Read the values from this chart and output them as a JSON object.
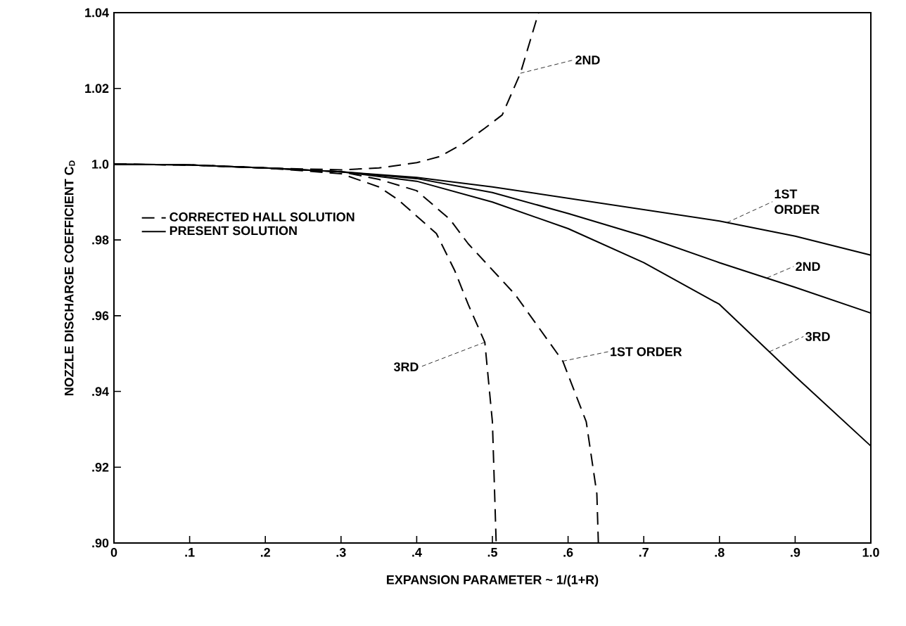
{
  "chart_data": {
    "type": "line",
    "xlabel": "EXPANSION PARAMETER ~ 1/(1+R)",
    "ylabel": "NOZZLE DISCHARGE COEFFICIENT C$_{D}$",
    "xlim": [
      0,
      1.0
    ],
    "ylim": [
      0.9,
      1.04
    ],
    "xticks": [
      0,
      {
        "value": 0.1,
        "label": ".1"
      },
      {
        "value": 0.2,
        "label": ".2"
      },
      {
        "value": 0.3,
        "label": ".3"
      },
      {
        "value": 0.4,
        "label": ".4"
      },
      {
        "value": 0.5,
        "label": ".5"
      },
      {
        "value": 0.6,
        "label": ".6"
      },
      {
        "value": 0.7,
        "label": ".7"
      },
      {
        "value": 0.8,
        "label": ".8"
      },
      {
        "value": 0.9,
        "label": ".9"
      },
      {
        "value": 1.0,
        "label": "1.0"
      }
    ],
    "yticks": [
      {
        "value": 0.9,
        "label": ".90"
      },
      {
        "value": 0.92,
        "label": ".92"
      },
      {
        "value": 0.94,
        "label": ".94"
      },
      {
        "value": 0.96,
        "label": ".96"
      },
      {
        "value": 0.98,
        "label": ".98"
      },
      {
        "value": 1.0,
        "label": "1.0"
      },
      {
        "value": 1.02,
        "label": "1.02"
      },
      {
        "value": 1.04,
        "label": "1.04"
      }
    ],
    "grid": false,
    "legend": "left",
    "marker": "none",
    "series": [
      {
        "name": "CORRECTED HALL SOLUTION",
        "color": "#000000",
        "line_style": "dashed",
        "x": [
          0,
          0.1,
          0.2,
          0.3,
          0.35,
          0.4,
          0.444,
          0.468,
          0.53,
          0.593,
          0.624,
          0.638,
          0.64
        ],
        "values": [
          1.0,
          0.9998,
          0.999,
          0.998,
          0.996,
          0.993,
          0.9854,
          0.979,
          0.9656,
          0.948,
          0.932,
          0.913,
          0.9
        ]
      },
      {
        "name": "PRESENT SOLUTION",
        "color": "#000000",
        "line_style": "solid",
        "x": [
          0,
          0.1,
          0.2,
          0.3,
          0.4,
          0.5,
          0.6,
          0.7,
          0.8,
          0.9,
          1.0
        ],
        "values": [
          1.0,
          0.9998,
          0.999,
          0.998,
          0.9965,
          0.994,
          0.991,
          0.988,
          0.985,
          0.981,
          0.976
        ]
      },
      {
        "color": "#000000",
        "line_style": "solid",
        "x": [
          0,
          0.1,
          0.2,
          0.3,
          0.4,
          0.5,
          0.6,
          0.7,
          0.8,
          0.9,
          1.0
        ],
        "values": [
          1.0,
          0.9998,
          0.999,
          0.998,
          0.9962,
          0.9925,
          0.987,
          0.981,
          0.974,
          0.9675,
          0.9607
        ]
      },
      {
        "color": "#000000",
        "line_style": "solid",
        "x": [
          0,
          0.1,
          0.2,
          0.3,
          0.4,
          0.5,
          0.6,
          0.7,
          0.8,
          0.9,
          1.0
        ],
        "values": [
          1.0,
          0.9998,
          0.999,
          0.998,
          0.9955,
          0.99,
          0.983,
          0.974,
          0.963,
          0.944,
          0.9256
        ]
      },
      {
        "color": "#000000",
        "line_style": "dashed",
        "x": [
          0,
          0.1,
          0.2,
          0.3,
          0.35,
          0.4,
          0.43,
          0.463,
          0.49,
          0.513,
          0.537,
          0.552,
          0.561
        ],
        "values": [
          1.0,
          0.9998,
          0.999,
          0.9985,
          0.999,
          1.0004,
          1.002,
          1.0056,
          1.0095,
          1.013,
          1.024,
          1.034,
          1.04
        ]
      },
      {
        "color": "#000000",
        "line_style": "dashed",
        "x": [
          0,
          0.1,
          0.2,
          0.3,
          0.35,
          0.375,
          0.426,
          0.45,
          0.468,
          0.49,
          0.5,
          0.505
        ],
        "values": [
          1.0,
          0.9998,
          0.999,
          0.9975,
          0.994,
          0.9907,
          0.9817,
          0.972,
          0.963,
          0.953,
          0.932,
          0.9
        ]
      }
    ],
    "annotations": [
      {
        "text": "2ND",
        "x": 0.537,
        "y": 1.024
      },
      {
        "text": "1ST ORDER",
        "x": 0.81,
        "y": 0.9846
      },
      {
        "text": "2ND",
        "x": 0.863,
        "y": 0.97
      },
      {
        "text": "3RD",
        "x": 0.866,
        "y": 0.9505
      },
      {
        "text": "1ST ORDER",
        "x": 0.593,
        "y": 0.948
      },
      {
        "text": "3RD",
        "x": 0.49,
        "y": 0.953
      }
    ]
  }
}
